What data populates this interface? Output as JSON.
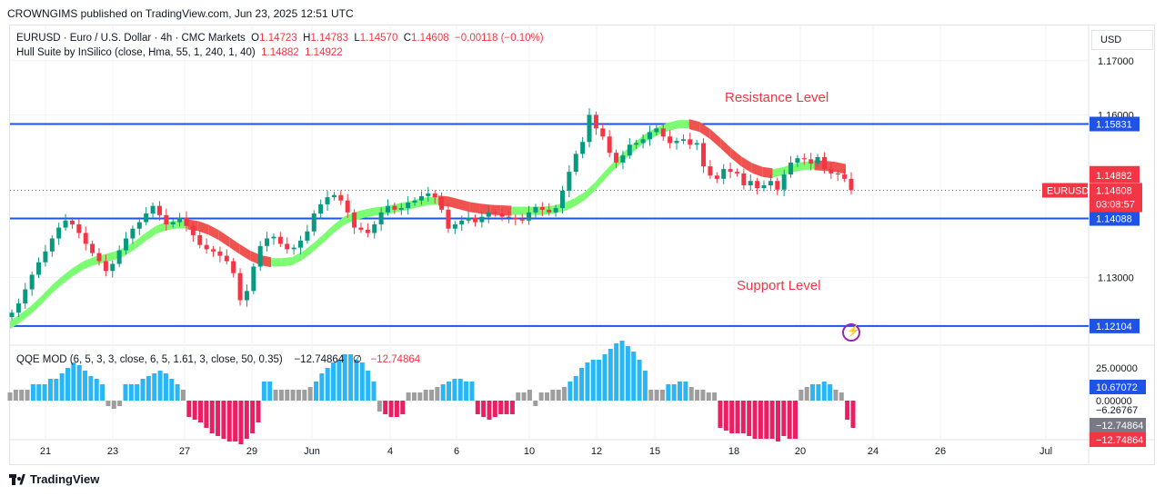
{
  "header": {
    "publisher": "CROWNGIMS published on TradingView.com, Jun 23, 2025 12:51 UTC"
  },
  "legend": {
    "symbol": "EURUSD · Euro / U.S. Dollar · 4h · CMC Markets",
    "o_label": "O",
    "o_value": "1.14723",
    "h_label": "H",
    "h_value": "1.14783",
    "l_label": "L",
    "l_value": "1.14570",
    "c_label": "C",
    "c_value": "1.14608",
    "change": "−0.00118 (−0.10%)",
    "indicator": "Hull Suite by InSilico (close, Hma, 55, 1, 240, 1, 40)",
    "ind_v1": "1.14882",
    "ind_v2": "1.14922"
  },
  "annotations": {
    "resistance": "Resistance Level",
    "support": "Support Level"
  },
  "oscillator": {
    "title": "QQE MOD (6, 5, 3, 3, close, 6, 5, 1.61, 3, close, 50, 0.35)",
    "v1": "−12.74864",
    "symbol": "∅",
    "v2": "−12.74864"
  },
  "axis": {
    "currency": "USD"
  },
  "footer": {
    "brand": "TradingView"
  },
  "colors": {
    "up": "#089981",
    "down": "#f23645",
    "hull_up": "#7cfc71",
    "hull_down": "#ef5350",
    "level": "#1e53e5",
    "qqe_up": "#29b6f6",
    "qqe_down": "#e91e63",
    "qqe_neutral": "#9e9e9e"
  },
  "chart_data": {
    "type": "candlestick",
    "price_ticks": [
      "1.17000",
      "1.16000",
      "1.13000"
    ],
    "price_tick_values": [
      1.17,
      1.16,
      1.13
    ],
    "ylim": [
      1.1175,
      1.1765
    ],
    "x_ticks": [
      "21",
      "23",
      "27",
      "29",
      "Jun",
      "4",
      "6",
      "10",
      "12",
      "15",
      "18",
      "20",
      "24",
      "26",
      "Jul"
    ],
    "levels": [
      {
        "label": "1.15831",
        "value": 1.15831
      },
      {
        "label": "1.14088",
        "value": 1.14088
      },
      {
        "label": "1.12104",
        "value": 1.12104
      }
    ],
    "price_labels": [
      {
        "text": "1.14922",
        "value": 1.14922,
        "color": "#f23645"
      },
      {
        "text": "1.14882",
        "value": 1.14882,
        "color": "#f23645"
      }
    ],
    "last": {
      "symbol": "EURUSD",
      "price": "1.14608",
      "value": 1.14608,
      "countdown": "03:08:57"
    },
    "close_series": [
      1.1235,
      1.1252,
      1.1278,
      1.1305,
      1.1328,
      1.1348,
      1.1372,
      1.1392,
      1.1405,
      1.1398,
      1.1382,
      1.1362,
      1.1345,
      1.133,
      1.1312,
      1.1325,
      1.135,
      1.1372,
      1.139,
      1.1402,
      1.1418,
      1.1432,
      1.1415,
      1.1398,
      1.1402,
      1.141,
      1.1395,
      1.1378,
      1.136,
      1.1352,
      1.1348,
      1.134,
      1.133,
      1.1308,
      1.1258,
      1.1275,
      1.132,
      1.1358,
      1.1372,
      1.1375,
      1.1362,
      1.1352,
      1.1355,
      1.1368,
      1.1385,
      1.1418,
      1.1435,
      1.1448,
      1.1452,
      1.1442,
      1.142,
      1.1392,
      1.1388,
      1.1382,
      1.1398,
      1.142,
      1.1432,
      1.1425,
      1.1428,
      1.1438,
      1.1442,
      1.145,
      1.1455,
      1.1448,
      1.1425,
      1.139,
      1.1398,
      1.1405,
      1.141,
      1.1402,
      1.1412,
      1.142,
      1.1418,
      1.1412,
      1.141,
      1.1408,
      1.1405,
      1.142,
      1.143,
      1.1425,
      1.142,
      1.1428,
      1.146,
      1.1495,
      1.1528,
      1.155,
      1.16,
      1.1575,
      1.156,
      1.153,
      1.1512,
      1.1525,
      1.1545,
      1.1548,
      1.1555,
      1.1568,
      1.1575,
      1.156,
      1.1548,
      1.1552,
      1.1555,
      1.1545,
      1.1548,
      1.1505,
      1.1488,
      1.1482,
      1.15,
      1.1495,
      1.1492,
      1.147,
      1.1478,
      1.1465,
      1.147,
      1.1478,
      1.1462,
      1.149,
      1.1512,
      1.152,
      1.1518,
      1.151,
      1.1522,
      1.15,
      1.1492,
      1.149,
      1.1482,
      1.1461
    ],
    "hull_series": [
      1.1212,
      1.1225,
      1.124,
      1.1258,
      1.1278,
      1.1295,
      1.131,
      1.1322,
      1.133,
      1.1335,
      1.134,
      1.1348,
      1.136,
      1.1375,
      1.1388,
      1.1395,
      1.1398,
      1.1398,
      1.1395,
      1.1388,
      1.1378,
      1.1365,
      1.1352,
      1.134,
      1.1332,
      1.1328,
      1.1328,
      1.133,
      1.134,
      1.1355,
      1.1372,
      1.139,
      1.1405,
      1.1413,
      1.1418,
      1.1422,
      1.1424,
      1.1428,
      1.1432,
      1.1437,
      1.1441,
      1.1442,
      1.144,
      1.1435,
      1.143,
      1.1427,
      1.1425,
      1.1424,
      1.1423,
      1.1423,
      1.1423,
      1.1423,
      1.1425,
      1.143,
      1.1438,
      1.145,
      1.1468,
      1.149,
      1.151,
      1.1528,
      1.1545,
      1.156,
      1.157,
      1.1578,
      1.1583,
      1.1583,
      1.1578,
      1.1565,
      1.1548,
      1.153,
      1.1514,
      1.1502,
      1.1495,
      1.1492,
      1.1496,
      1.1502,
      1.1506,
      1.1507,
      1.1506,
      1.1504,
      1.15
    ],
    "qqe_histogram": [
      6,
      8,
      8,
      8,
      12,
      12,
      12,
      16,
      16,
      20,
      24,
      28,
      26,
      22,
      18,
      16,
      12,
      -4,
      -6,
      -4,
      12,
      12,
      12,
      16,
      18,
      20,
      22,
      20,
      16,
      12,
      8,
      -12,
      -14,
      -16,
      -20,
      -24,
      -26,
      -28,
      -30,
      -30,
      -32,
      -28,
      -24,
      -16,
      14,
      14,
      8,
      8,
      8,
      8,
      8,
      8,
      10,
      14,
      20,
      24,
      28,
      30,
      34,
      34,
      30,
      28,
      22,
      14,
      -8,
      -10,
      -12,
      -12,
      -10,
      6,
      6,
      6,
      8,
      8,
      10,
      12,
      14,
      16,
      16,
      14,
      14,
      -10,
      -12,
      -14,
      -12,
      -10,
      -10,
      -10,
      6,
      6,
      8,
      -4,
      6,
      6,
      8,
      8,
      10,
      14,
      18,
      24,
      28,
      30,
      30,
      34,
      38,
      42,
      44,
      40,
      36,
      30,
      22,
      8,
      8,
      8,
      12,
      12,
      14,
      14,
      10,
      8,
      8,
      6,
      6,
      -20,
      -22,
      -24,
      -24,
      -24,
      -26,
      -28,
      -28,
      -28,
      -28,
      -30,
      -26,
      -28,
      -28,
      8,
      10,
      12,
      12,
      14,
      12,
      8,
      6,
      -14,
      -20
    ]
  }
}
